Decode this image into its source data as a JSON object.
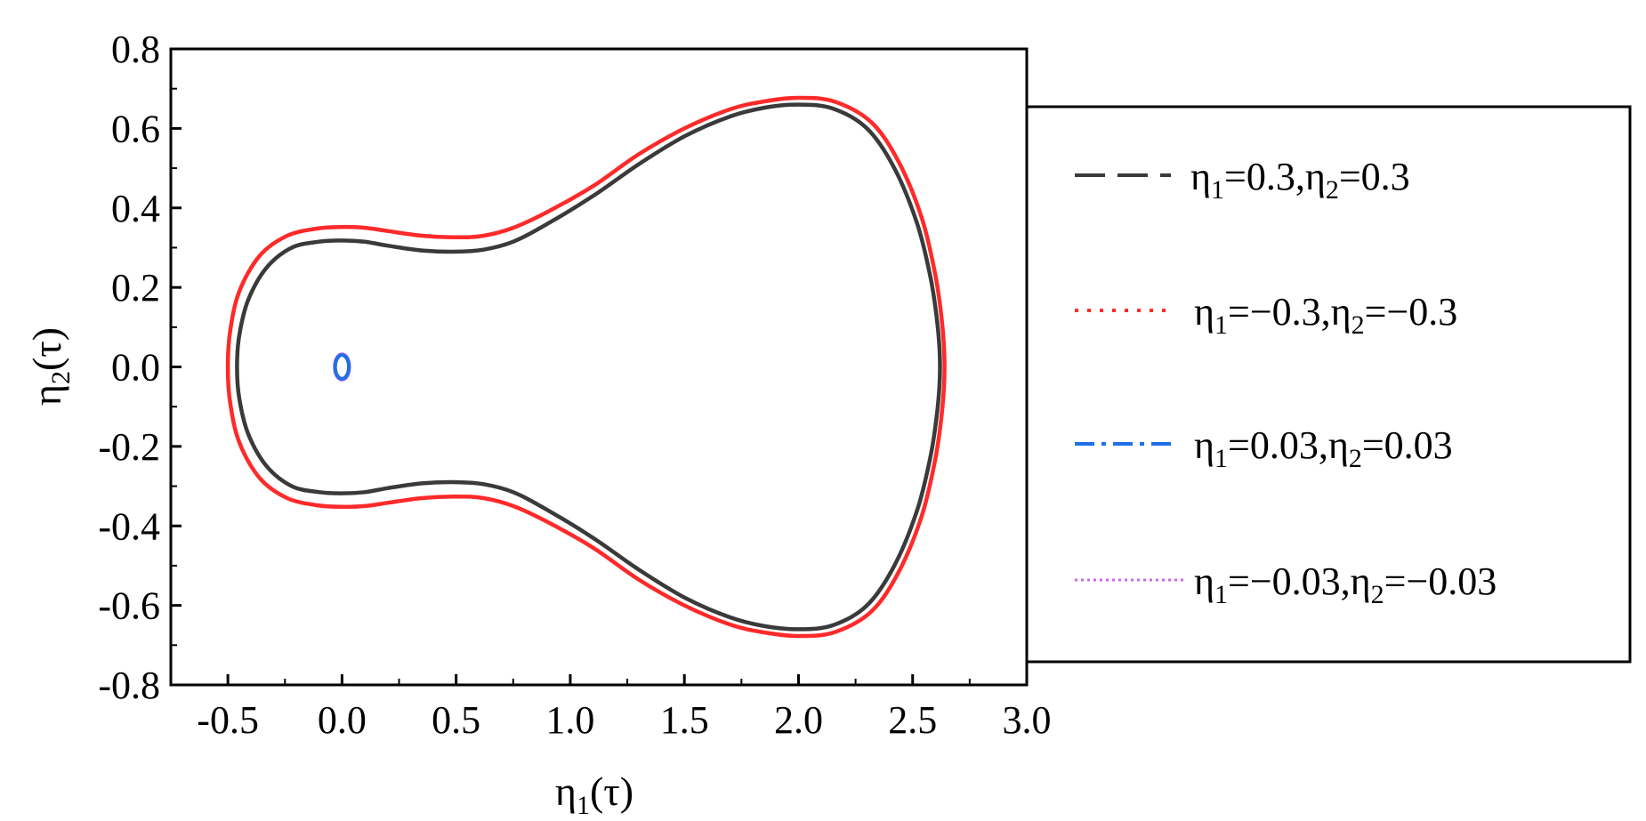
{
  "chart_data": {
    "type": "line",
    "xlabel": {
      "main": "η",
      "sub": "1",
      "tail": "(τ)"
    },
    "ylabel": {
      "main": "η",
      "sub": "2",
      "tail": "(τ)"
    },
    "xlim": [
      -0.75,
      3.0
    ],
    "ylim": [
      -0.8,
      0.8
    ],
    "xticks": [
      "-0.5",
      "0.0",
      "0.5",
      "1.0",
      "1.5",
      "2.0",
      "2.5",
      "3.0"
    ],
    "xtick_values": [
      -0.5,
      0.0,
      0.5,
      1.0,
      1.5,
      2.0,
      2.5,
      3.0
    ],
    "yticks": [
      "-0.8",
      "-0.6",
      "-0.4",
      "-0.2",
      "0.0",
      "0.2",
      "0.4",
      "0.6",
      "0.8"
    ],
    "ytick_values": [
      -0.8,
      -0.6,
      -0.4,
      -0.2,
      0.0,
      0.2,
      0.4,
      0.6,
      0.8
    ],
    "legend_position": "right, outside plot",
    "series": [
      {
        "name": "η1=0.3,η2=0.3",
        "label": {
          "a": "η",
          "a_sub": "1",
          "a_val": "=0.3,",
          "b": "η",
          "b_sub": "2",
          "b_val": "=0.3"
        },
        "color": "#3a3a3a",
        "style": "dashed",
        "x": [
          -0.46,
          -0.45,
          -0.41,
          -0.33,
          -0.22,
          -0.1,
          0.0,
          0.1,
          0.2,
          0.35,
          0.5,
          0.62,
          0.75,
          0.9,
          1.1,
          1.3,
          1.5,
          1.7,
          1.85,
          2.0,
          2.15,
          2.3,
          2.42,
          2.52,
          2.58,
          2.61,
          2.62,
          2.61,
          2.58,
          2.52,
          2.42,
          2.3,
          2.15,
          2.0,
          1.85,
          1.7,
          1.5,
          1.3,
          1.1,
          0.9,
          0.75,
          0.62,
          0.5,
          0.35,
          0.2,
          0.1,
          0.0,
          -0.1,
          -0.22,
          -0.33,
          -0.41,
          -0.45,
          -0.46
        ],
        "y": [
          0.0,
          0.08,
          0.17,
          0.25,
          0.3,
          0.315,
          0.318,
          0.315,
          0.305,
          0.293,
          0.29,
          0.295,
          0.315,
          0.36,
          0.43,
          0.51,
          0.58,
          0.63,
          0.652,
          0.66,
          0.65,
          0.6,
          0.5,
          0.36,
          0.22,
          0.1,
          0.0,
          -0.1,
          -0.22,
          -0.36,
          -0.5,
          -0.6,
          -0.65,
          -0.66,
          -0.652,
          -0.63,
          -0.58,
          -0.51,
          -0.43,
          -0.36,
          -0.315,
          -0.295,
          -0.29,
          -0.293,
          -0.305,
          -0.315,
          -0.318,
          -0.315,
          -0.3,
          -0.25,
          -0.17,
          -0.08,
          0.0
        ]
      },
      {
        "name": "η1=−0.3,η2=−0.3",
        "label": {
          "a": "η",
          "a_sub": "1",
          "a_val": "=−0.3,",
          "b": "η",
          "b_sub": "2",
          "b_val": "=−0.3"
        },
        "color": "#ff2a2a",
        "style": "dotted",
        "x": [
          -0.5,
          -0.49,
          -0.45,
          -0.36,
          -0.24,
          -0.11,
          0.0,
          0.1,
          0.2,
          0.35,
          0.5,
          0.62,
          0.75,
          0.9,
          1.1,
          1.3,
          1.5,
          1.7,
          1.85,
          2.0,
          2.16,
          2.32,
          2.44,
          2.54,
          2.6,
          2.63,
          2.64,
          2.63,
          2.6,
          2.54,
          2.44,
          2.32,
          2.16,
          2.0,
          1.85,
          1.7,
          1.5,
          1.3,
          1.1,
          0.9,
          0.75,
          0.62,
          0.5,
          0.35,
          0.2,
          0.1,
          0.0,
          -0.11,
          -0.24,
          -0.36,
          -0.45,
          -0.49,
          -0.5
        ],
        "y": [
          0.0,
          0.09,
          0.19,
          0.28,
          0.33,
          0.348,
          0.352,
          0.35,
          0.342,
          0.33,
          0.326,
          0.33,
          0.35,
          0.39,
          0.455,
          0.535,
          0.6,
          0.648,
          0.668,
          0.677,
          0.667,
          0.615,
          0.515,
          0.375,
          0.23,
          0.105,
          0.0,
          -0.105,
          -0.23,
          -0.375,
          -0.515,
          -0.615,
          -0.667,
          -0.677,
          -0.668,
          -0.648,
          -0.6,
          -0.535,
          -0.455,
          -0.39,
          -0.35,
          -0.33,
          -0.326,
          -0.33,
          -0.342,
          -0.35,
          -0.352,
          -0.348,
          -0.33,
          -0.28,
          -0.19,
          -0.09,
          0.0
        ]
      },
      {
        "name": "η1=0.03,η2=0.03",
        "label": {
          "a": "η",
          "a_sub": "1",
          "a_val": "=0.03,",
          "b": "η",
          "b_sub": "2",
          "b_val": "=0.03"
        },
        "color": "#1e6fe8",
        "style": "dashdot",
        "x": [
          0.03,
          0.026,
          0.015,
          0.0,
          -0.015,
          -0.026,
          -0.03,
          -0.026,
          -0.015,
          0.0,
          0.015,
          0.026,
          0.03
        ],
        "y": [
          0.0,
          0.015,
          0.026,
          0.03,
          0.026,
          0.015,
          0.0,
          -0.015,
          -0.026,
          -0.03,
          -0.026,
          -0.015,
          0.0
        ]
      },
      {
        "name": "η1=−0.03,η2=−0.03",
        "label": {
          "a": "η",
          "a_sub": "1",
          "a_val": "=−0.03,",
          "b": "η",
          "b_sub": "2",
          "b_val": "=−0.03"
        },
        "color": "#c86be8",
        "style": "dotted",
        "x": [
          0.032,
          0.028,
          0.016,
          0.0,
          -0.016,
          -0.028,
          -0.032,
          -0.028,
          -0.016,
          0.0,
          0.016,
          0.028,
          0.032
        ],
        "y": [
          0.0,
          0.016,
          0.028,
          0.032,
          0.028,
          0.016,
          0.0,
          -0.016,
          -0.028,
          -0.032,
          -0.028,
          -0.016,
          0.0
        ]
      }
    ]
  }
}
